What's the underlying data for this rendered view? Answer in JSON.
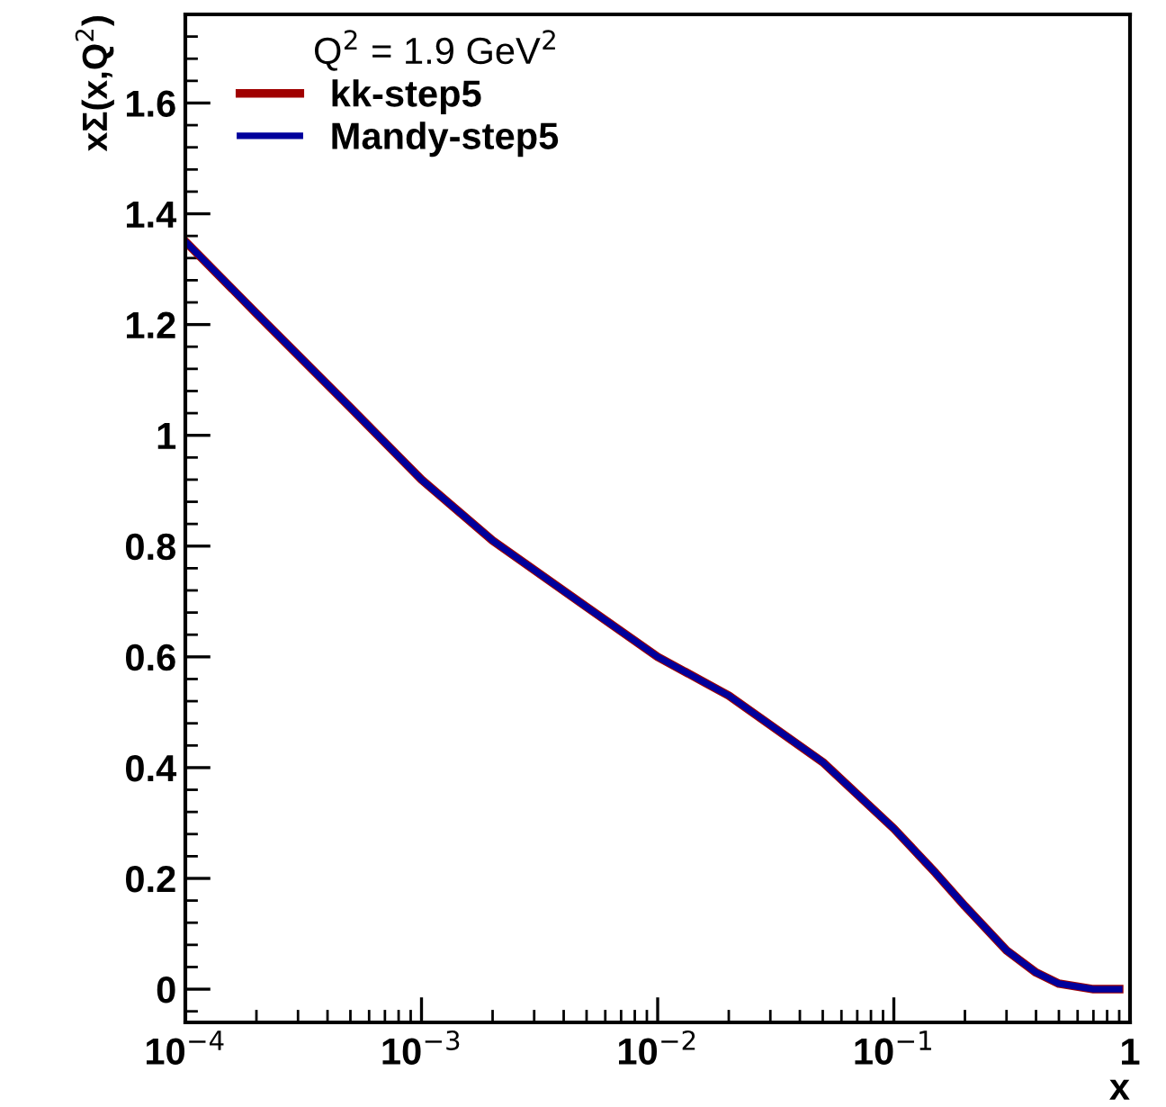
{
  "chart_data": {
    "type": "line",
    "xlabel": "x",
    "ylabel": "xΣ(x,Q$^{2}$)",
    "legend_title": "Q$^{2}$ = 1.9 GeV$^{2}$",
    "x": [
      0.0001,
      0.0002,
      0.0005,
      0.001,
      0.002,
      0.005,
      0.01,
      0.02,
      0.05,
      0.1,
      0.15,
      0.2,
      0.3,
      0.4,
      0.5,
      0.7,
      0.9
    ],
    "series": [
      {
        "name": "kk-step5",
        "color": "#a00000",
        "values": [
          1.35,
          1.22,
          1.05,
          0.92,
          0.81,
          0.69,
          0.6,
          0.53,
          0.41,
          0.29,
          0.21,
          0.15,
          0.07,
          0.03,
          0.01,
          0.0,
          0.0
        ]
      },
      {
        "name": "Mandy-step5",
        "color": "#00009c",
        "values": [
          1.35,
          1.22,
          1.05,
          0.92,
          0.81,
          0.69,
          0.6,
          0.53,
          0.41,
          0.29,
          0.21,
          0.15,
          0.07,
          0.03,
          0.01,
          0.0,
          0.0
        ]
      }
    ],
    "log": "x",
    "xlim": [
      0.0001,
      1
    ],
    "ylim": [
      -0.06,
      1.76
    ],
    "xticks": [
      {
        "value": 0.0001,
        "label": "10$^{−4}$"
      },
      {
        "value": 0.001,
        "label": "10$^{−3}$"
      },
      {
        "value": 0.01,
        "label": "10$^{−2}$"
      },
      {
        "value": 0.1,
        "label": "10$^{−1}$"
      },
      1
    ],
    "yticks": [
      0,
      0.2,
      0.4,
      0.6,
      0.8,
      1,
      1.2,
      1.4,
      1.6
    ],
    "grid": false,
    "legend": "top left",
    "marker": "none",
    "line_style": "solid"
  }
}
